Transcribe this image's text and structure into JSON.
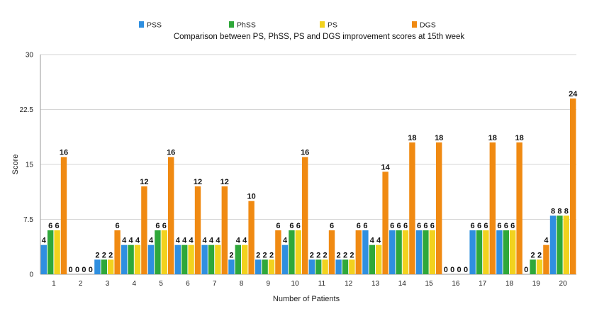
{
  "chart_data": {
    "type": "bar",
    "title": "Comparison between PS, PhSS, PS and DGS improvement scores at 15th week",
    "xlabel": "Number of Patients",
    "ylabel": "Score",
    "ylim": [
      0,
      30
    ],
    "yticks": [
      "0",
      "7.5",
      "15",
      "22.5",
      "30"
    ],
    "grid": true,
    "legend_position": "top",
    "categories": [
      "1",
      "2",
      "3",
      "4",
      "5",
      "6",
      "7",
      "8",
      "9",
      "10",
      "11",
      "12",
      "13",
      "14",
      "15",
      "16",
      "17",
      "18",
      "19",
      "20"
    ],
    "series": [
      {
        "name": "PSS",
        "color": "#2f8fe0",
        "values": [
          4,
          0,
          2,
          4,
          4,
          4,
          4,
          2,
          2,
          4,
          2,
          2,
          6,
          6,
          6,
          0,
          6,
          6,
          0,
          8
        ]
      },
      {
        "name": "PhSS",
        "color": "#2fa83a",
        "values": [
          6,
          0,
          2,
          4,
          6,
          4,
          4,
          4,
          2,
          6,
          2,
          2,
          4,
          6,
          6,
          0,
          6,
          6,
          2,
          8
        ]
      },
      {
        "name": "PS",
        "color": "#f2d21e",
        "values": [
          6,
          0,
          2,
          4,
          6,
          4,
          4,
          4,
          2,
          6,
          2,
          2,
          4,
          6,
          6,
          0,
          6,
          6,
          2,
          8
        ]
      },
      {
        "name": "DGS",
        "color": "#f08a12",
        "values": [
          16,
          0,
          6,
          12,
          16,
          12,
          12,
          10,
          6,
          16,
          6,
          6,
          14,
          18,
          18,
          0,
          18,
          18,
          4,
          24
        ]
      }
    ]
  }
}
